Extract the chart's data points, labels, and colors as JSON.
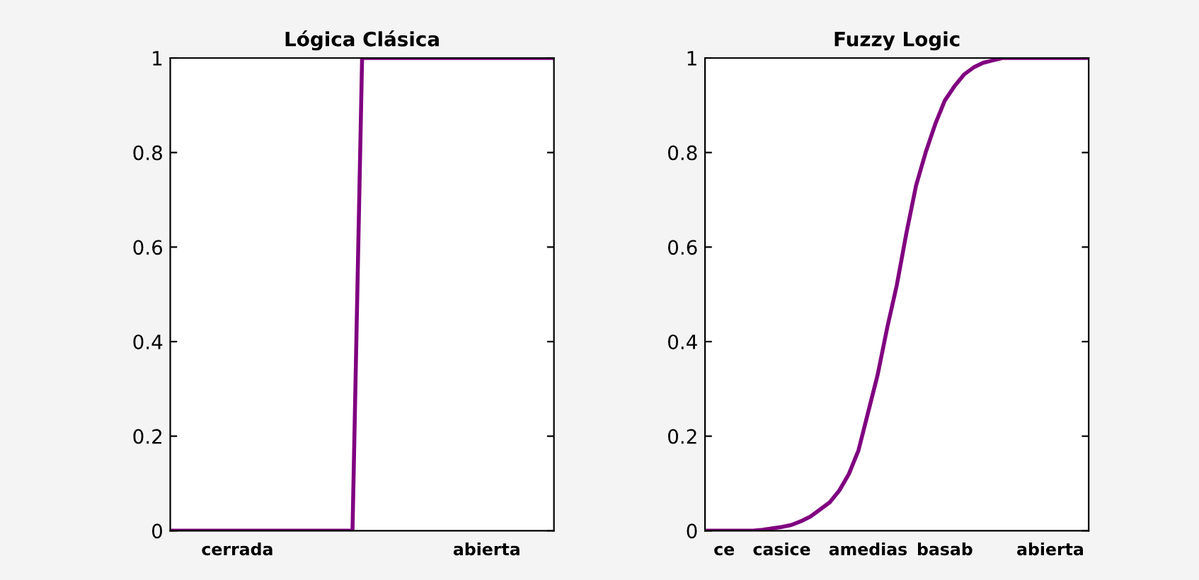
{
  "chart_data": [
    {
      "type": "line",
      "title": "Lógica Clásica",
      "categories": [
        null,
        null,
        null,
        null,
        null,
        null,
        null,
        "cerrada",
        null,
        null,
        null,
        null,
        null,
        null,
        null,
        null,
        null,
        null,
        null,
        null,
        null,
        null,
        null,
        null,
        null,
        null,
        null,
        null,
        null,
        null,
        null,
        null,
        null,
        "abierta",
        null,
        null,
        null,
        null,
        null,
        null,
        null
      ],
      "series": [
        {
          "color": "#800080",
          "values": [
            0,
            0,
            0,
            0,
            0,
            0,
            0,
            0,
            0,
            0,
            0,
            0,
            0,
            0,
            0,
            0,
            0,
            0,
            0,
            0,
            1,
            1,
            1,
            1,
            1,
            1,
            1,
            1,
            1,
            1,
            1,
            1,
            1,
            1,
            1,
            1,
            1,
            1,
            1,
            1,
            1
          ]
        }
      ],
      "ylim": [
        0,
        1
      ],
      "yticks": [
        0,
        0.2,
        0.4,
        0.6,
        0.8,
        1
      ],
      "grid": false,
      "legend": false,
      "marker": "none",
      "line_style": "solid"
    },
    {
      "type": "line",
      "title": "Fuzzy Logic",
      "categories": [
        null,
        null,
        "ce",
        null,
        null,
        null,
        null,
        null,
        "casice",
        null,
        null,
        null,
        null,
        null,
        null,
        null,
        null,
        "amedias",
        null,
        null,
        null,
        null,
        null,
        null,
        null,
        "basab",
        null,
        null,
        null,
        null,
        null,
        null,
        null,
        null,
        null,
        null,
        "abierta",
        null,
        null,
        null,
        null
      ],
      "series": [
        {
          "color": "#800080",
          "values": [
            0,
            0,
            0,
            0,
            0,
            0,
            0.002,
            0.005,
            0.008,
            0.012,
            0.02,
            0.03,
            0.045,
            0.06,
            0.085,
            0.12,
            0.17,
            0.25,
            0.33,
            0.43,
            0.52,
            0.63,
            0.73,
            0.8,
            0.86,
            0.91,
            0.94,
            0.965,
            0.98,
            0.99,
            0.995,
            1,
            1,
            1,
            1,
            1,
            1,
            1,
            1,
            1,
            1
          ]
        }
      ],
      "ylim": [
        0,
        1
      ],
      "yticks": [
        0,
        0.2,
        0.4,
        0.6,
        0.8,
        1
      ],
      "grid": false,
      "legend": false,
      "marker": "none",
      "line_style": "solid"
    }
  ]
}
